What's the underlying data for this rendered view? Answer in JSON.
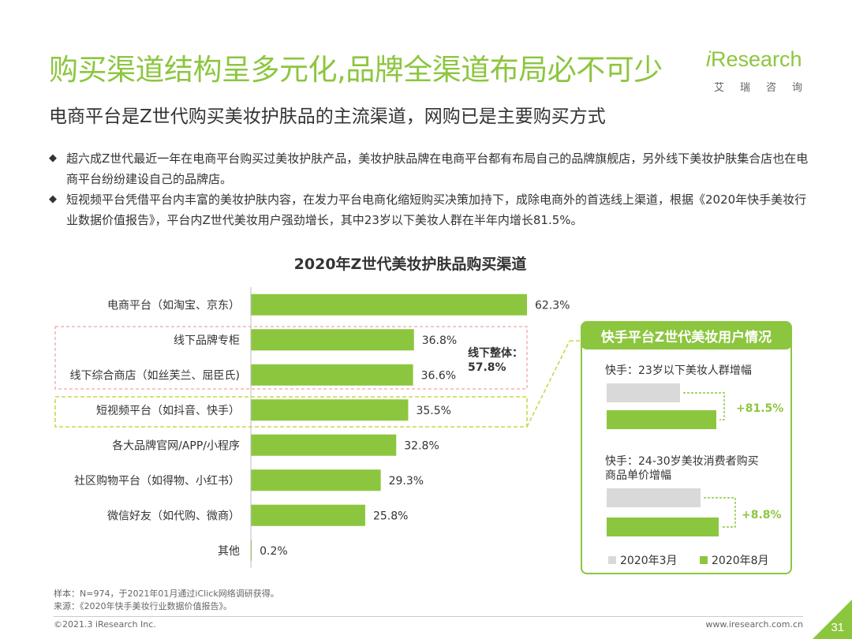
{
  "header": {
    "title": "购买渠道结构呈多元化,品牌全渠道布局必不可少",
    "subtitle": "电商平台是Z世代购买美妆护肤品的主流渠道，网购已是主要购买方式"
  },
  "logo": {
    "word_i": "i",
    "word_rest": "Research",
    "cn": [
      "艾",
      "瑞",
      "咨",
      "询"
    ]
  },
  "bullets": [
    "超六成Z世代最近一年在电商平台购买过美妆护肤产品，美妆护肤品牌在电商平台都有布局自己的品牌旗舰店，另外线下美妆护肤集合店也在电商平台纷纷建设自己的品牌店。",
    "短视频平台凭借平台内丰富的美妆护肤内容，在发力平台电商化缩短购买决策加持下，成除电商外的首选线上渠道，根据《2020年快手美妆行业数据价值报告》，平台内Z世代美妆用户强劲增长，其中23岁以下美妆人群在半年内增长81.5%。"
  ],
  "bullet_marker": "◆",
  "chart_data": [
    {
      "type": "bar",
      "orientation": "horizontal",
      "title": "2020年Z世代美妆护肤品购买渠道",
      "categories": [
        "电商平台（如淘宝、京东）",
        "线下品牌专柜",
        "线下综合商店（如丝芙兰、屈臣氏)",
        "短视频平台（如抖音、快手）",
        "各大品牌官网/APP/小程序",
        "社区购物平台（如得物、小红书）",
        "微信好友（如代购、微商）",
        "其他"
      ],
      "values": [
        62.3,
        36.8,
        36.6,
        35.5,
        32.8,
        29.3,
        25.8,
        0.2
      ],
      "value_labels": [
        "62.3%",
        "36.8%",
        "36.6%",
        "35.5%",
        "32.8%",
        "29.3%",
        "25.8%",
        "0.2%"
      ],
      "color": "#8cc63f",
      "annotation": {
        "label": "线下整体：",
        "value": 57.8,
        "value_label": "57.8%"
      },
      "highlight_color": "#f4a3a3",
      "highlight2_color": "#c8d94a"
    },
    {
      "type": "bar",
      "orientation": "horizontal",
      "title": "快手平台Z世代美妆用户情况",
      "groups": [
        {
          "label": "快手：23岁以下美妆人群增幅",
          "change_label": "+81.5%"
        },
        {
          "label": "快手：24-30岁美妆消费者购买商品单价增幅",
          "change_label": "+8.8%"
        }
      ],
      "series": [
        {
          "name": "2020年3月",
          "color": "#d9d9d9"
        },
        {
          "name": "2020年8月",
          "color": "#8cc63f"
        }
      ]
    }
  ],
  "footer": {
    "note1": "样本：N=974，于2021年01月通过iClick网络调研获得。",
    "note2": "来源：《2020年快手美妆行业数据价值报告》。",
    "copyright": "©2021.3 iResearch Inc.",
    "website": "www.iresearch.com.cn",
    "page": "31"
  }
}
